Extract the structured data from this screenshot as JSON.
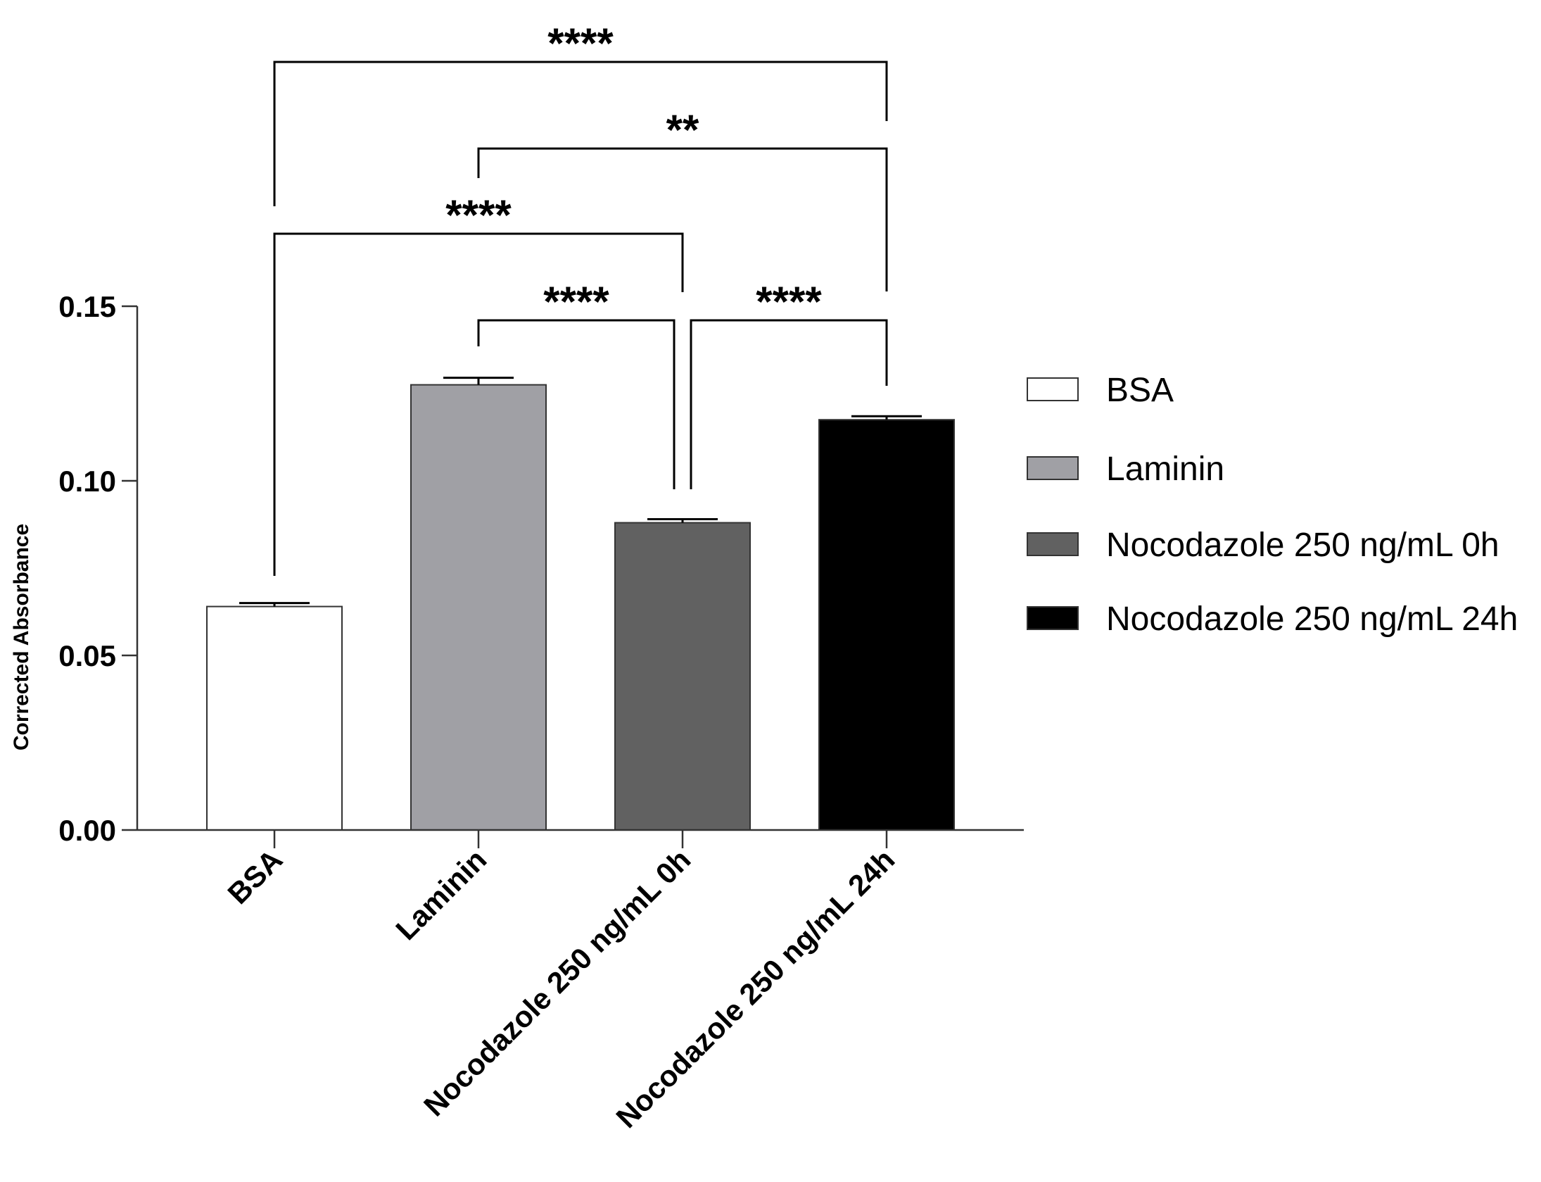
{
  "chart_data": {
    "type": "bar",
    "title": "",
    "xlabel": "",
    "ylabel": "Corrected Absorbance",
    "ylim": [
      0,
      0.15
    ],
    "yticks": [
      "0.00",
      "0.05",
      "0.10",
      "0.15"
    ],
    "grid": false,
    "legend_position": "right",
    "categories": [
      "BSA",
      "Laminin",
      "Nocodazole 250 ng/mL 0h",
      "Nocodazole 250 ng/mL 24h"
    ],
    "values": [
      0.064,
      0.1275,
      0.088,
      0.1175
    ],
    "errors": [
      0.001,
      0.002,
      0.001,
      0.001
    ],
    "colors": [
      "#ffffff",
      "#a0a0a5",
      "#616161",
      "#000000"
    ],
    "significance": [
      {
        "from": 0,
        "to": 3,
        "label": "****"
      },
      {
        "from": 1,
        "to": 3,
        "label": "**"
      },
      {
        "from": 0,
        "to": 2,
        "label": "****"
      },
      {
        "from": 1,
        "to": 2,
        "label": "****"
      },
      {
        "from": 2,
        "to": 3,
        "label": "****"
      }
    ]
  }
}
